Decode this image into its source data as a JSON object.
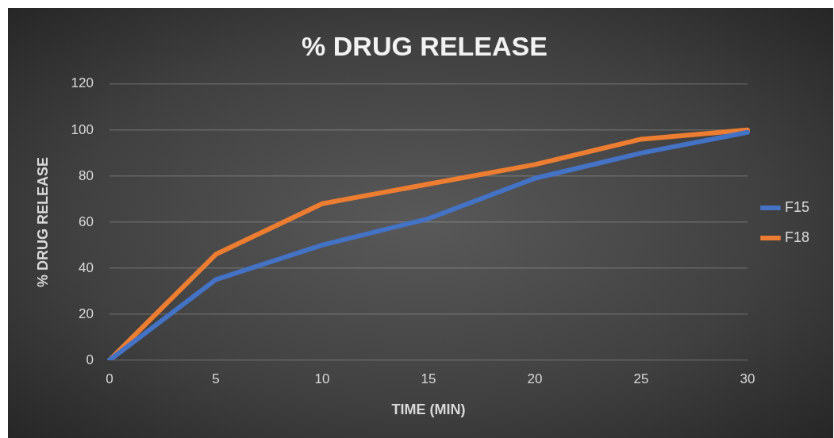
{
  "chart_data": {
    "type": "line",
    "title": "% DRUG RELEASE",
    "xlabel": "TIME (MIN)",
    "ylabel": "% DRUG RELEASE",
    "categories": [
      "0",
      "5",
      "10",
      "15",
      "20",
      "25",
      "30"
    ],
    "series": [
      {
        "name": "F15",
        "color": "#4472c4",
        "values": [
          0,
          35,
          50,
          61.5,
          79,
          90,
          99
        ]
      },
      {
        "name": "F18",
        "color": "#ed7d31",
        "values": [
          0,
          46,
          68,
          76.5,
          85,
          96,
          100
        ]
      }
    ],
    "ylim": [
      0,
      120
    ],
    "yticks": [
      0,
      20,
      40,
      60,
      80,
      100,
      120
    ],
    "grid": "y",
    "legend": "right",
    "marker": "none",
    "line_style": "solid"
  }
}
